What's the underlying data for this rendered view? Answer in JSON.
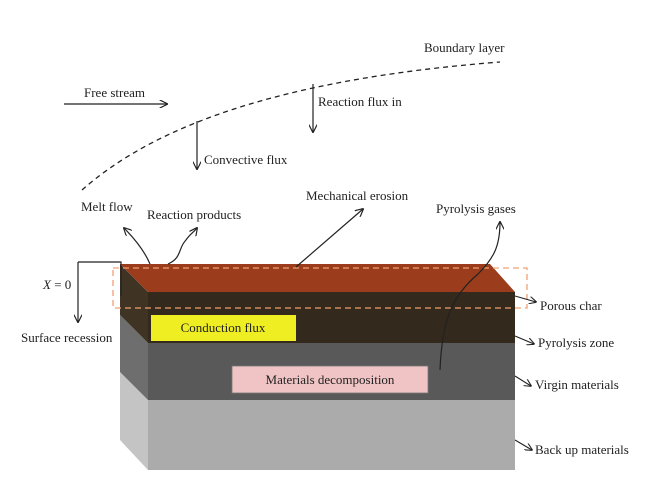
{
  "labels": {
    "boundary_layer": "Boundary layer",
    "free_stream": "Free stream",
    "reaction_flux_in": "Reaction flux in",
    "convective_flux": "Convective flux",
    "melt_flow": "Melt flow",
    "reaction_products": "Reaction products",
    "mechanical_erosion": "Mechanical erosion",
    "pyrolysis_gases": "Pyrolysis gases",
    "x_var": "X",
    "x_eq": " = 0",
    "surface_recession": "Surface recession",
    "conduction_flux": "Conduction flux",
    "materials_decomposition": "Materials decomposition",
    "porous_char": "Porous char",
    "pyrolysis_zone": "Pyrolysis zone",
    "virgin_materials": "Virgin materials",
    "back_up_materials": "Back up materials"
  },
  "colors": {
    "top_surface": "#9b3d1c",
    "porous_char_layer": "#33291c",
    "pyrolysis_zone_layer": "#595959",
    "virgin_materials_layer": "#ababab",
    "conduction_flux_box": "#eeee22",
    "decomposition_box": "#f0c4c4",
    "dashed_outline": "#f0a070"
  }
}
